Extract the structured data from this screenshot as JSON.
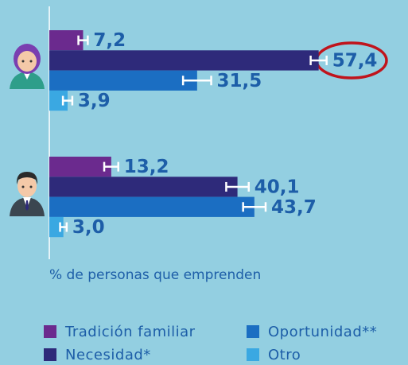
{
  "chart_data": {
    "type": "bar",
    "orientation": "horizontal",
    "x_label": "% de personas que emprenden",
    "categories": [
      null,
      null
    ],
    "xlim": [
      0,
      60
    ],
    "series": [
      {
        "name": "Tradición familiar",
        "color": "#6b2a8e",
        "values": [
          7.2,
          13.2
        ],
        "errors": [
          1.0,
          1.5
        ],
        "value_labels": [
          "7,2",
          "13,2"
        ]
      },
      {
        "name": "Necesidad*",
        "color": "#2e2a7a",
        "values": [
          57.4,
          40.1
        ],
        "errors": [
          1.7,
          2.4
        ],
        "value_labels": [
          "57,4",
          "40,1"
        ]
      },
      {
        "name": "Oportunidad**",
        "color": "#1b6ec2",
        "values": [
          31.5,
          43.7
        ],
        "errors": [
          3.0,
          2.4
        ],
        "value_labels": [
          "31,5",
          "43,7"
        ]
      },
      {
        "name": "Otro",
        "color": "#3aa8e2",
        "values": [
          3.9,
          3.0
        ],
        "errors": [
          1.0,
          0.7
        ],
        "value_labels": [
          "3,9",
          "3,0"
        ]
      }
    ]
  }
}
